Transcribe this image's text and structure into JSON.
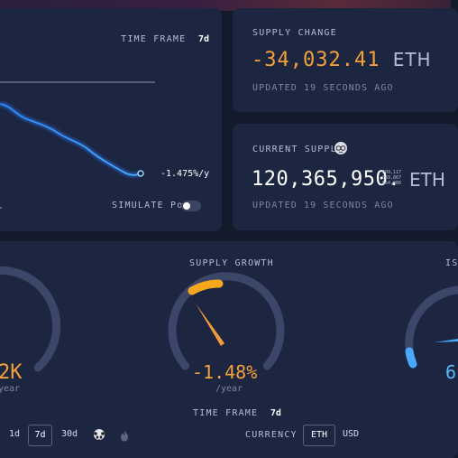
{
  "colors": {
    "negative": "#f5a13a",
    "positive": "#5ab8ff",
    "panel": "#1c2640",
    "bg": "#121a2b"
  },
  "chart_panel": {
    "timeframe_label": "TIME FRAME",
    "timeframe_value": "7d",
    "rate_label": "-1.475%/y",
    "simulate_pow_label": "SIMULATE PoW",
    "simulate_pow_on": false
  },
  "supply_change": {
    "label": "SUPPLY CHANGE",
    "value": "-34,032.41",
    "unit": "ETH",
    "updated": "UPDATED 19 SECONDS AGO"
  },
  "current_supply": {
    "label": "CURRENT SUPPLY",
    "value": "120,365,950.",
    "decimals": [
      "609,117",
      "869,867",
      "964,986"
    ],
    "unit": "ETH",
    "updated": "UPDATED 19 SECONDS AGO",
    "icon": "glasses-emoji-icon"
  },
  "gauges": {
    "left": {
      "value": "2K",
      "sub": "year"
    },
    "supply_growth": {
      "title": "SUPPLY GROWTH",
      "value": "-1.48%",
      "sub": "/year",
      "timeframe_label": "TIME FRAME",
      "timeframe_value": "7d",
      "level_fraction": 0.16
    },
    "right": {
      "title": "IS",
      "value": "6"
    }
  },
  "bottom_bar": {
    "timeframes": [
      "1d",
      "7d",
      "30d"
    ],
    "selected_timeframe": "7d",
    "currency_label": "CURRENCY",
    "currencies": [
      "ETH",
      "USD"
    ],
    "selected_currency": "ETH"
  }
}
